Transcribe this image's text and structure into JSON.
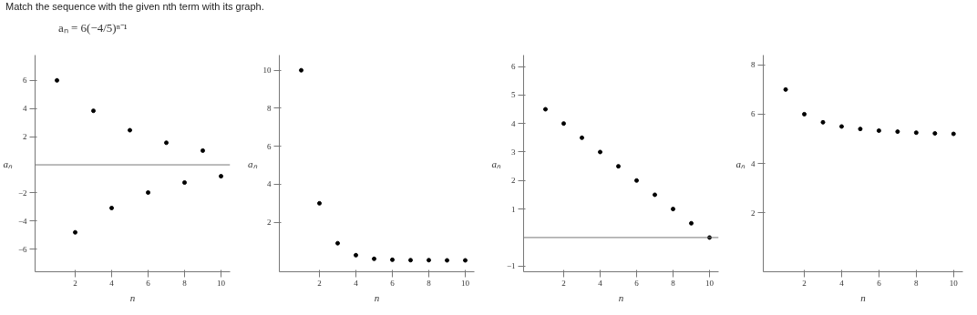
{
  "chart_data": [
    {
      "type": "scatter",
      "title": "Match the sequence with the given nth term with its graph.",
      "subtitle": "aₙ = 6(−4/5)ⁿ⁻¹",
      "xlabel": "n",
      "ylabel": "aₙ",
      "marker": "circle",
      "color": "#000000",
      "x": [
        1,
        2,
        3,
        4,
        5,
        6,
        7,
        8,
        9,
        10
      ],
      "values": [
        6,
        -4.8,
        3.84,
        -3.07,
        2.46,
        -1.97,
        1.57,
        -1.26,
        1.01,
        -0.81
      ],
      "xlim": [
        -0.2,
        10.5
      ],
      "ylim": [
        -7.6,
        7.8
      ],
      "xticks": [
        2,
        4,
        6,
        8,
        10
      ],
      "yticks": [
        -6,
        -4,
        -2,
        2,
        4,
        6
      ],
      "ref_lines": [
        {
          "axis": "y",
          "value": 0,
          "color": "#777777"
        }
      ]
    },
    {
      "type": "scatter",
      "xlabel": "n",
      "ylabel": "aₙ",
      "marker": "circle",
      "color": "#000000",
      "x": [
        1,
        2,
        3,
        4,
        5,
        6,
        7,
        8,
        9,
        10
      ],
      "values": [
        10,
        3,
        0.9,
        0.27,
        0.08,
        0.03,
        0.01,
        0.01,
        0,
        0
      ],
      "xlim": [
        -0.2,
        10.5
      ],
      "ylim": [
        -0.6,
        10.8
      ],
      "xticks": [
        2,
        4,
        6,
        8,
        10
      ],
      "yticks": [
        2,
        4,
        6,
        8,
        10
      ]
    },
    {
      "type": "scatter",
      "xlabel": "n",
      "ylabel": "aₙ",
      "marker": "circle",
      "color": "#000000",
      "x": [
        1,
        2,
        3,
        4,
        5,
        6,
        7,
        8,
        9,
        10
      ],
      "values": [
        4.5,
        4,
        3.5,
        3,
        2.5,
        2,
        1.5,
        1,
        0.5,
        0
      ],
      "xlim": [
        -0.2,
        10.5
      ],
      "ylim": [
        -1.2,
        6.4
      ],
      "xticks": [
        2,
        4,
        6,
        8,
        10
      ],
      "yticks": [
        -1,
        1,
        2,
        3,
        4,
        5,
        6
      ],
      "ref_lines": [
        {
          "axis": "y",
          "value": 0,
          "color": "#777777"
        }
      ]
    },
    {
      "type": "scatter",
      "xlabel": "n",
      "ylabel": "aₙ",
      "marker": "circle",
      "color": "#000000",
      "x": [
        1,
        2,
        3,
        4,
        5,
        6,
        7,
        8,
        9,
        10
      ],
      "values": [
        7,
        6,
        5.67,
        5.5,
        5.4,
        5.33,
        5.29,
        5.25,
        5.22,
        5.2
      ],
      "xlim": [
        -0.2,
        10.5
      ],
      "ylim": [
        -0.4,
        8.4
      ],
      "xticks": [
        2,
        4,
        6,
        8,
        10
      ],
      "yticks": [
        2,
        4,
        6,
        8
      ]
    }
  ]
}
